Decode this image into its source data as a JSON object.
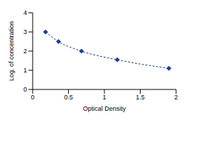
{
  "chart_data": {
    "type": "line",
    "x_label": "Optical Density",
    "y_label": "Log. of concentration",
    "x": [
      0.18,
      0.36,
      0.68,
      1.18,
      1.9
    ],
    "values": [
      3.0,
      2.5,
      2.0,
      1.55,
      1.1
    ],
    "color": "#1f3f8f",
    "marker": "diamond",
    "line_style": "dashed",
    "xlim": [
      0,
      2
    ],
    "xticks": [
      0,
      0.5,
      1,
      1.5,
      2
    ],
    "ylim": [
      0,
      4
    ],
    "yticks": [
      0,
      1,
      2,
      3,
      4
    ],
    "grid": false
  }
}
